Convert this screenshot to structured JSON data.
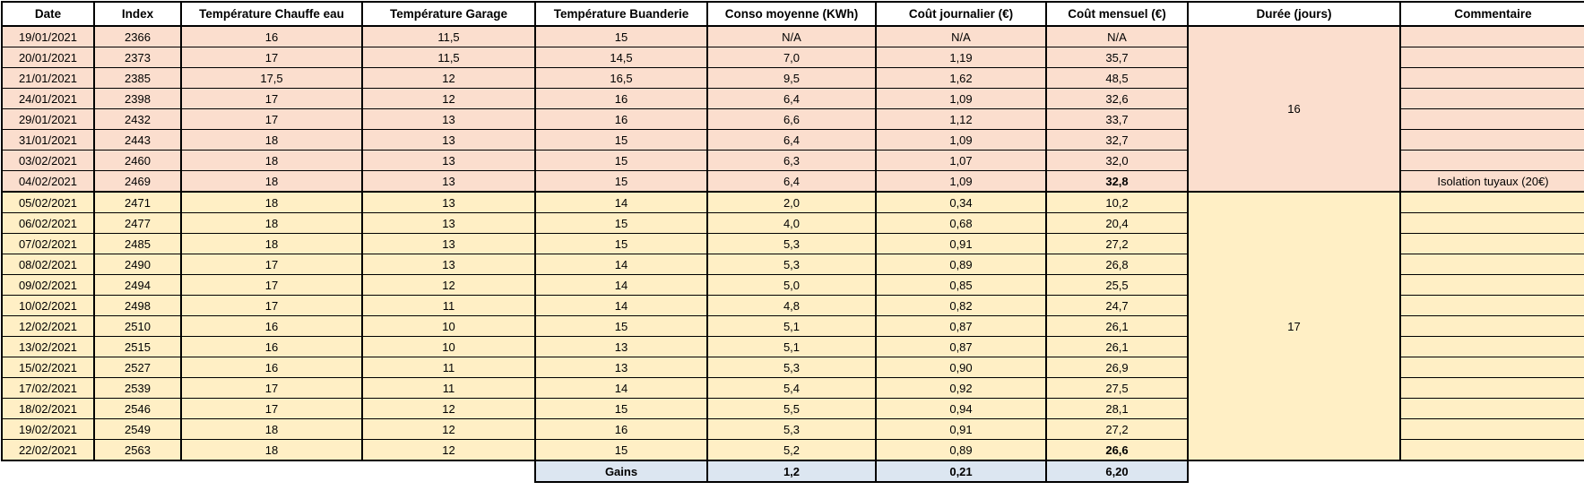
{
  "table": {
    "headers": [
      "Date",
      "Index",
      "Température Chauffe eau",
      "Température Garage",
      "Température Buanderie",
      "Conso moyenne (KWh)",
      "Coût journalier (€)",
      "Coût mensuel (€)",
      "Durée (jours)",
      "Commentaire"
    ],
    "groups": [
      {
        "color": "pink",
        "duration_days": "16",
        "rows": [
          {
            "date": "19/01/2021",
            "index": "2366",
            "t_chauffe_eau": "16",
            "t_garage": "11,5",
            "t_buanderie": "15",
            "conso": "N/A",
            "cout_j": "N/A",
            "cout_m": "N/A",
            "bold": false,
            "commentaire": ""
          },
          {
            "date": "20/01/2021",
            "index": "2373",
            "t_chauffe_eau": "17",
            "t_garage": "11,5",
            "t_buanderie": "14,5",
            "conso": "7,0",
            "cout_j": "1,19",
            "cout_m": "35,7",
            "bold": false,
            "commentaire": ""
          },
          {
            "date": "21/01/2021",
            "index": "2385",
            "t_chauffe_eau": "17,5",
            "t_garage": "12",
            "t_buanderie": "16,5",
            "conso": "9,5",
            "cout_j": "1,62",
            "cout_m": "48,5",
            "bold": false,
            "commentaire": ""
          },
          {
            "date": "24/01/2021",
            "index": "2398",
            "t_chauffe_eau": "17",
            "t_garage": "12",
            "t_buanderie": "16",
            "conso": "6,4",
            "cout_j": "1,09",
            "cout_m": "32,6",
            "bold": false,
            "commentaire": ""
          },
          {
            "date": "29/01/2021",
            "index": "2432",
            "t_chauffe_eau": "17",
            "t_garage": "13",
            "t_buanderie": "16",
            "conso": "6,6",
            "cout_j": "1,12",
            "cout_m": "33,7",
            "bold": false,
            "commentaire": ""
          },
          {
            "date": "31/01/2021",
            "index": "2443",
            "t_chauffe_eau": "18",
            "t_garage": "13",
            "t_buanderie": "15",
            "conso": "6,4",
            "cout_j": "1,09",
            "cout_m": "32,7",
            "bold": false,
            "commentaire": ""
          },
          {
            "date": "03/02/2021",
            "index": "2460",
            "t_chauffe_eau": "18",
            "t_garage": "13",
            "t_buanderie": "15",
            "conso": "6,3",
            "cout_j": "1,07",
            "cout_m": "32,0",
            "bold": false,
            "commentaire": ""
          },
          {
            "date": "04/02/2021",
            "index": "2469",
            "t_chauffe_eau": "18",
            "t_garage": "13",
            "t_buanderie": "15",
            "conso": "6,4",
            "cout_j": "1,09",
            "cout_m": "32,8",
            "bold": true,
            "commentaire": "Isolation tuyaux (20€)"
          }
        ]
      },
      {
        "color": "yellow",
        "duration_days": "17",
        "rows": [
          {
            "date": "05/02/2021",
            "index": "2471",
            "t_chauffe_eau": "18",
            "t_garage": "13",
            "t_buanderie": "14",
            "conso": "2,0",
            "cout_j": "0,34",
            "cout_m": "10,2",
            "bold": false,
            "commentaire": ""
          },
          {
            "date": "06/02/2021",
            "index": "2477",
            "t_chauffe_eau": "18",
            "t_garage": "13",
            "t_buanderie": "15",
            "conso": "4,0",
            "cout_j": "0,68",
            "cout_m": "20,4",
            "bold": false,
            "commentaire": ""
          },
          {
            "date": "07/02/2021",
            "index": "2485",
            "t_chauffe_eau": "18",
            "t_garage": "13",
            "t_buanderie": "15",
            "conso": "5,3",
            "cout_j": "0,91",
            "cout_m": "27,2",
            "bold": false,
            "commentaire": ""
          },
          {
            "date": "08/02/2021",
            "index": "2490",
            "t_chauffe_eau": "17",
            "t_garage": "13",
            "t_buanderie": "14",
            "conso": "5,3",
            "cout_j": "0,89",
            "cout_m": "26,8",
            "bold": false,
            "commentaire": ""
          },
          {
            "date": "09/02/2021",
            "index": "2494",
            "t_chauffe_eau": "17",
            "t_garage": "12",
            "t_buanderie": "14",
            "conso": "5,0",
            "cout_j": "0,85",
            "cout_m": "25,5",
            "bold": false,
            "commentaire": ""
          },
          {
            "date": "10/02/2021",
            "index": "2498",
            "t_chauffe_eau": "17",
            "t_garage": "11",
            "t_buanderie": "14",
            "conso": "4,8",
            "cout_j": "0,82",
            "cout_m": "24,7",
            "bold": false,
            "commentaire": ""
          },
          {
            "date": "12/02/2021",
            "index": "2510",
            "t_chauffe_eau": "16",
            "t_garage": "10",
            "t_buanderie": "15",
            "conso": "5,1",
            "cout_j": "0,87",
            "cout_m": "26,1",
            "bold": false,
            "commentaire": ""
          },
          {
            "date": "13/02/2021",
            "index": "2515",
            "t_chauffe_eau": "16",
            "t_garage": "10",
            "t_buanderie": "13",
            "conso": "5,1",
            "cout_j": "0,87",
            "cout_m": "26,1",
            "bold": false,
            "commentaire": ""
          },
          {
            "date": "15/02/2021",
            "index": "2527",
            "t_chauffe_eau": "16",
            "t_garage": "11",
            "t_buanderie": "13",
            "conso": "5,3",
            "cout_j": "0,90",
            "cout_m": "26,9",
            "bold": false,
            "commentaire": ""
          },
          {
            "date": "17/02/2021",
            "index": "2539",
            "t_chauffe_eau": "17",
            "t_garage": "11",
            "t_buanderie": "14",
            "conso": "5,4",
            "cout_j": "0,92",
            "cout_m": "27,5",
            "bold": false,
            "commentaire": ""
          },
          {
            "date": "18/02/2021",
            "index": "2546",
            "t_chauffe_eau": "17",
            "t_garage": "12",
            "t_buanderie": "15",
            "conso": "5,5",
            "cout_j": "0,94",
            "cout_m": "28,1",
            "bold": false,
            "commentaire": ""
          },
          {
            "date": "19/02/2021",
            "index": "2549",
            "t_chauffe_eau": "18",
            "t_garage": "12",
            "t_buanderie": "16",
            "conso": "5,3",
            "cout_j": "0,91",
            "cout_m": "27,2",
            "bold": false,
            "commentaire": ""
          },
          {
            "date": "22/02/2021",
            "index": "2563",
            "t_chauffe_eau": "18",
            "t_garage": "12",
            "t_buanderie": "15",
            "conso": "5,2",
            "cout_j": "0,89",
            "cout_m": "26,6",
            "bold": true,
            "commentaire": ""
          }
        ]
      }
    ],
    "footer": {
      "label": "Gains",
      "conso": "1,2",
      "cout_j": "0,21",
      "cout_m": "6,20"
    }
  },
  "colors": {
    "pink_group_bg": "#fbdece",
    "yellow_group_bg": "#ffefc5",
    "gains_row_bg": "#dce6f1",
    "border": "#000000"
  }
}
